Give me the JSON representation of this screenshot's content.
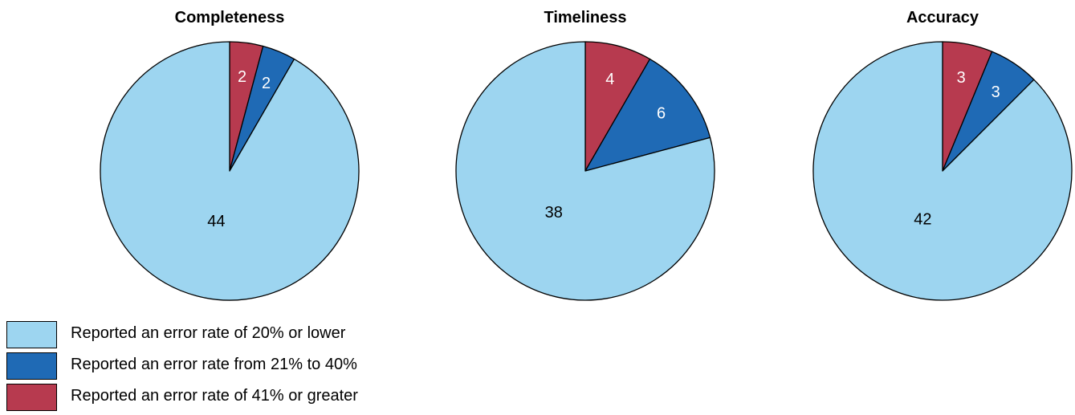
{
  "colors": {
    "low": "#9dd5f0",
    "mid": "#1f6ab5",
    "high": "#b73a4f"
  },
  "legend": {
    "items": [
      {
        "label": "Reported an error rate of 20% or lower",
        "color": "#9dd5f0"
      },
      {
        "label": "Reported an error rate from 21% to 40%",
        "color": "#1f6ab5"
      },
      {
        "label": "Reported an error rate of 41% or greater",
        "color": "#b73a4f"
      }
    ]
  },
  "chart_data": [
    {
      "type": "pie",
      "title": "Completeness",
      "slices": [
        {
          "label": "Reported an error rate of 41% or greater",
          "value": 2,
          "color": "#b73a4f"
        },
        {
          "label": "Reported an error rate from 21% to 40%",
          "value": 2,
          "color": "#1f6ab5"
        },
        {
          "label": "Reported an error rate of 20% or lower",
          "value": 44,
          "color": "#9dd5f0"
        }
      ]
    },
    {
      "type": "pie",
      "title": "Timeliness",
      "slices": [
        {
          "label": "Reported an error rate of 41% or greater",
          "value": 4,
          "color": "#b73a4f"
        },
        {
          "label": "Reported an error rate from 21% to 40%",
          "value": 6,
          "color": "#1f6ab5"
        },
        {
          "label": "Reported an error rate of 20% or lower",
          "value": 38,
          "color": "#9dd5f0"
        }
      ]
    },
    {
      "type": "pie",
      "title": "Accuracy",
      "slices": [
        {
          "label": "Reported an error rate of 41% or greater",
          "value": 3,
          "color": "#b73a4f"
        },
        {
          "label": "Reported an error rate from 21% to 40%",
          "value": 3,
          "color": "#1f6ab5"
        },
        {
          "label": "Reported an error rate of 20% or lower",
          "value": 42,
          "color": "#9dd5f0"
        }
      ]
    }
  ]
}
